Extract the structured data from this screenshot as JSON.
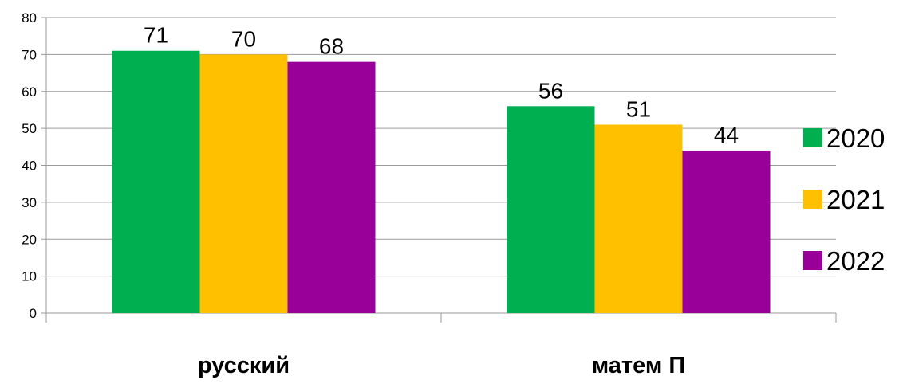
{
  "chart_data": {
    "type": "bar",
    "categories": [
      "русский",
      "матем П"
    ],
    "series": [
      {
        "name": "2020",
        "values": [
          71,
          56
        ],
        "color": "#00B050"
      },
      {
        "name": "2021",
        "values": [
          70,
          51
        ],
        "color": "#FFC000"
      },
      {
        "name": "2022",
        "values": [
          68,
          44
        ],
        "color": "#990099"
      }
    ],
    "ylim": [
      0,
      80
    ],
    "yticks": [
      0,
      10,
      20,
      30,
      40,
      50,
      60,
      70,
      80
    ],
    "grid": true,
    "legend_position": "right",
    "data_labels": true
  }
}
